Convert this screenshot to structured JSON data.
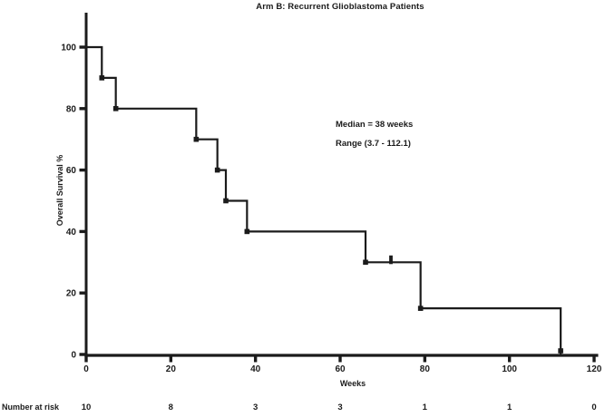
{
  "title": "Arm B: Recurrent Glioblastoma Patients",
  "y_axis": {
    "label": "Overall Survival %"
  },
  "x_axis": {
    "label": "Weeks"
  },
  "annotations": {
    "median": "Median = 38 weeks",
    "range": "Range (3.7 - 112.1)"
  },
  "risk_table": {
    "label": "Number at risk",
    "values": [
      "10",
      "8",
      "3",
      "3",
      "1",
      "1",
      "0"
    ]
  },
  "chart_data": {
    "type": "line",
    "subtype": "kaplan-meier-step-curve",
    "title": "Arm B: Recurrent Glioblastoma Patients",
    "xlabel": "Weeks",
    "ylabel": "Overall Survival %",
    "xlim": [
      0,
      120
    ],
    "ylim": [
      0,
      100
    ],
    "x_ticks": [
      0,
      20,
      40,
      60,
      80,
      100,
      120
    ],
    "y_ticks": [
      0,
      20,
      40,
      60,
      80,
      100
    ],
    "grid": false,
    "legend": false,
    "line_color": "#1b1b1b",
    "series": [
      {
        "name": "Overall survival",
        "steps": [
          {
            "week": 0,
            "survival_pct": 100
          },
          {
            "week": 3.7,
            "survival_pct": 90
          },
          {
            "week": 7,
            "survival_pct": 80
          },
          {
            "week": 26,
            "survival_pct": 70
          },
          {
            "week": 31,
            "survival_pct": 60
          },
          {
            "week": 33,
            "survival_pct": 50
          },
          {
            "week": 38,
            "survival_pct": 40
          },
          {
            "week": 66,
            "survival_pct": 30
          },
          {
            "week": 79,
            "survival_pct": 15
          },
          {
            "week": 112.1,
            "survival_pct": 0
          }
        ],
        "censor_marks": [
          {
            "week": 72,
            "survival_pct": 30
          }
        ]
      }
    ],
    "median_weeks": 38,
    "range_weeks": [
      3.7,
      112.1
    ],
    "number_at_risk": {
      "label": "Number at risk",
      "weeks": [
        0,
        20,
        40,
        60,
        80,
        100,
        120
      ],
      "counts": [
        10,
        8,
        3,
        3,
        1,
        1,
        0
      ]
    }
  }
}
